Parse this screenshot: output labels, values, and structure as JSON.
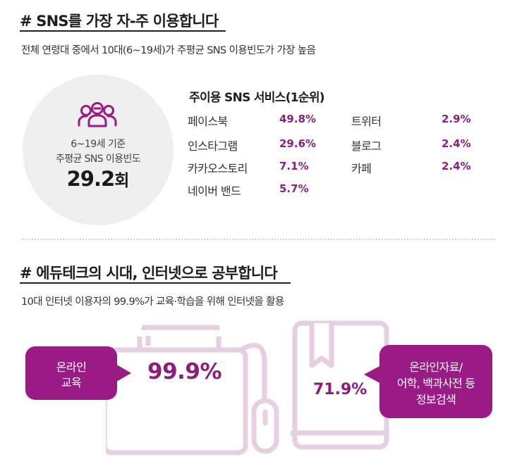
{
  "section1": {
    "heading": "# SNS를 가장 자-주 이용합니다",
    "subtitle": "전체 연령대 중에서 10대(6~19세)가 주평균 SNS 이용빈도가 가장 높음",
    "circle": {
      "line1": "6~19세 기준",
      "line2": "주평균 SNS 이용빈도",
      "value": "29.2",
      "unit": "회",
      "icon": "people-group-icon"
    },
    "services_title": "주이용 SNS 서비스(1순위)",
    "services": [
      {
        "name": "페이스북",
        "pct": "49.8%"
      },
      {
        "name": "인스타그램",
        "pct": "29.6%"
      },
      {
        "name": "카카오스토리",
        "pct": "7.1%"
      },
      {
        "name": "네이버 밴드",
        "pct": "5.7%"
      },
      {
        "name": "트위터",
        "pct": "2.9%"
      },
      {
        "name": "블로그",
        "pct": "2.4%"
      },
      {
        "name": "카페",
        "pct": "2.4%"
      }
    ]
  },
  "section2": {
    "heading": "# 에듀테크의 시대, 인터넷으로 공부합니다",
    "subtitle": "10대 인터넷 이용자의 99.9%가 교육·학습을 위해 인터넷을 활용",
    "left_bubble": {
      "line1": "온라인",
      "line2": "교육"
    },
    "left_value": "99.9%",
    "right_value": "71.9%",
    "right_bubble": {
      "line1": "온라인자료/",
      "line2": "어학, 백과사전 등",
      "line3": "정보검색"
    },
    "icons": [
      "computer-monitor-icon",
      "mouse-icon",
      "book-icon"
    ]
  },
  "colors": {
    "accent": "#9a1a86",
    "accent_text": "#8b1f7c",
    "outline": "#e6cfe1",
    "circle_bg": "#efefef"
  }
}
